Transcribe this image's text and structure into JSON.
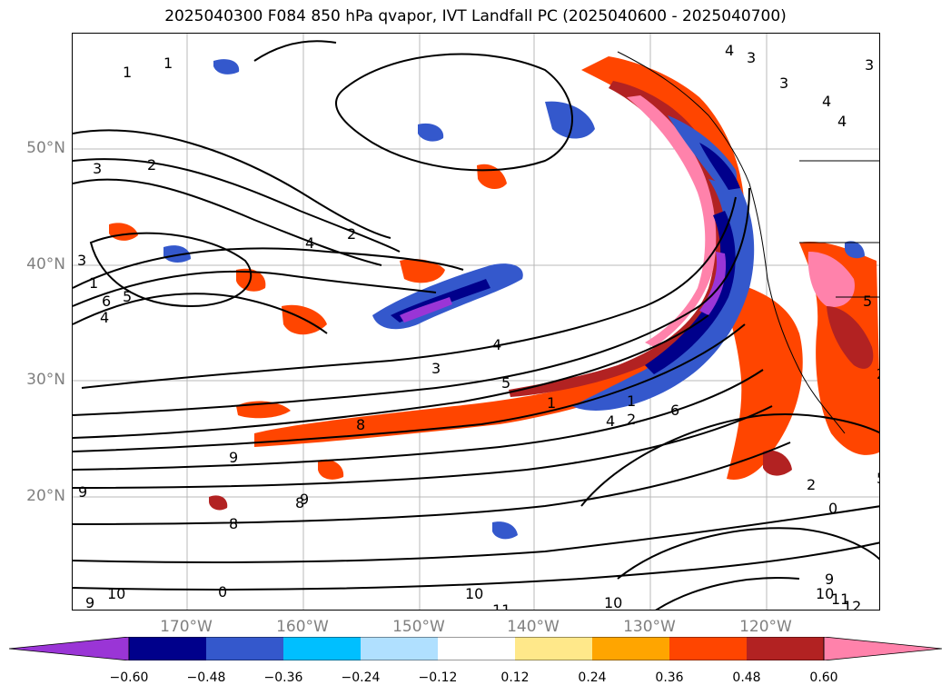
{
  "title": "2025040300 F084 850 hPa qvapor, IVT Landfall PC (2025040600 - 2025040700)",
  "latitude_labels": [
    "50°N",
    "40°N",
    "30°N",
    "20°N"
  ],
  "longitude_labels": [
    "170°W",
    "160°W",
    "150°W",
    "140°W",
    "130°W",
    "120°W"
  ],
  "colorbar": {
    "ticks": [
      "−0.60",
      "−0.48",
      "−0.36",
      "−0.24",
      "−0.12",
      "0.12",
      "0.24",
      "0.36",
      "0.48",
      "0.60"
    ],
    "colors": [
      "#9a35d6",
      "#00008b",
      "#3458cc",
      "#00bfff",
      "#b0e0ff",
      "#ffffff",
      "#ffe88a",
      "#ffa500",
      "#ff4500",
      "#b22222",
      "#ff82ab",
      "#ff82ab"
    ]
  },
  "contour_labels": [
    "1",
    "1",
    "3",
    "2",
    "4",
    "2",
    "3",
    "1",
    "6",
    "5",
    "4",
    "4",
    "3",
    "5",
    "1",
    "8",
    "9",
    "9",
    "8",
    "8",
    "9",
    "10",
    "9",
    "0",
    "10",
    "11",
    "10",
    "4",
    "2",
    "6",
    "1",
    "2",
    "0",
    "9",
    "10",
    "11",
    "12",
    "4",
    "3",
    "3",
    "4",
    "4",
    "3",
    "5",
    "2",
    "5"
  ]
}
